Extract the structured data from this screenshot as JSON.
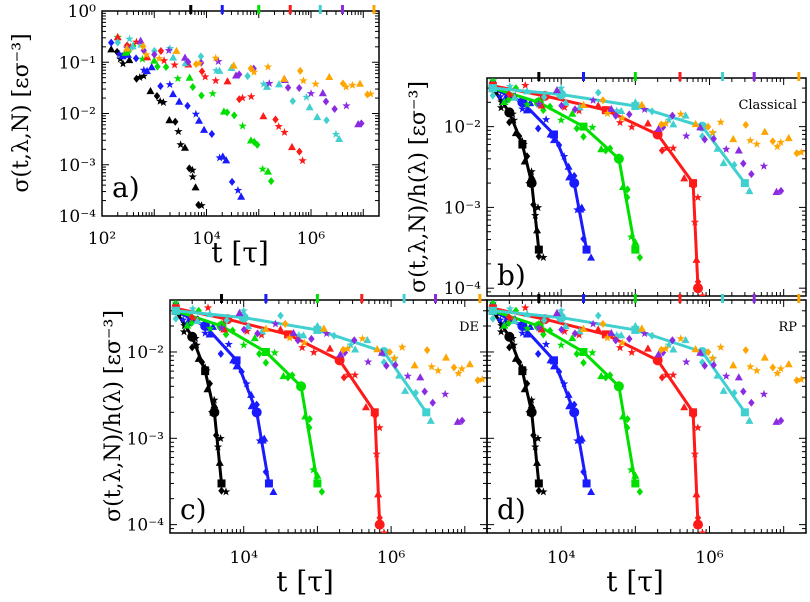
{
  "figure_type": "multi-panel log-log plot",
  "chart_data": [
    {
      "panel": "a)",
      "type": "scatter",
      "xscale": "log",
      "yscale": "log",
      "xlim": [
        100,
        20000000
      ],
      "ylim": [
        0.0001,
        1
      ],
      "xlabel": "t [τ]",
      "ylabel": "σ(t,λ,N) [εσ⁻³]",
      "xtick_labels": [
        "10²",
        "10⁴",
        "10⁶"
      ],
      "ytick_labels": [
        "10⁻⁴",
        "10⁻³",
        "10⁻²",
        "10⁻¹",
        "10⁰"
      ],
      "top_marker_positions": [
        5000,
        20000,
        100000,
        400000,
        1500000,
        4000000,
        16000000
      ],
      "series": [
        {
          "name": "black",
          "color": "#000000",
          "x": [
            150,
            300,
            700,
            1500,
            3000,
            5000,
            7000
          ],
          "y": [
            0.18,
            0.1,
            0.04,
            0.015,
            0.004,
            0.0008,
            0.0002
          ]
        },
        {
          "name": "blue",
          "color": "#1a1aff",
          "x": [
            150,
            400,
            1000,
            3000,
            8000,
            20000,
            40000
          ],
          "y": [
            0.2,
            0.12,
            0.06,
            0.02,
            0.007,
            0.0015,
            0.0003
          ]
        },
        {
          "name": "green",
          "color": "#00e000",
          "x": [
            200,
            500,
            2000,
            8000,
            30000,
            80000,
            150000
          ],
          "y": [
            0.25,
            0.15,
            0.07,
            0.03,
            0.01,
            0.003,
            0.0006
          ]
        },
        {
          "name": "red",
          "color": "#ff1a1a",
          "x": [
            200,
            600,
            3000,
            15000,
            60000,
            250000,
            600000
          ],
          "y": [
            0.3,
            0.18,
            0.1,
            0.05,
            0.02,
            0.006,
            0.0015
          ]
        },
        {
          "name": "cyan",
          "color": "#40d0d0",
          "x": [
            200,
            800,
            5000,
            30000,
            200000,
            1000000,
            3000000
          ],
          "y": [
            0.3,
            0.2,
            0.12,
            0.07,
            0.035,
            0.015,
            0.004
          ]
        },
        {
          "name": "purple",
          "color": "#8a2be2",
          "x": [
            300,
            1500,
            10000,
            80000,
            500000,
            2000000,
            8000000
          ],
          "y": [
            0.25,
            0.16,
            0.1,
            0.06,
            0.035,
            0.02,
            0.008
          ]
        },
        {
          "name": "orange",
          "color": "#ffa500",
          "x": [
            300,
            2000,
            20000,
            150000,
            1000000,
            5000000,
            12000000
          ],
          "y": [
            0.2,
            0.14,
            0.1,
            0.07,
            0.05,
            0.04,
            0.03
          ]
        }
      ]
    },
    {
      "panel": "b)",
      "type": "scatter+line",
      "label": "Classical",
      "xscale": "log",
      "yscale": "log",
      "xlim": [
        1000,
        20000000
      ],
      "ylim": [
        8e-05,
        0.04
      ],
      "ylabel": "σ(t,λ,N)/h(λ) [εσ⁻³]",
      "ytick_labels": [
        "10⁻⁴",
        "10⁻³",
        "10⁻²"
      ],
      "top_marker_positions": [
        5000,
        20000,
        100000,
        400000,
        1500000,
        4000000,
        16000000
      ],
      "series": [
        {
          "name": "black",
          "color": "#000000",
          "x": [
            1200,
            2000,
            3000,
            4000,
            5000
          ],
          "y": [
            0.03,
            0.015,
            0.006,
            0.002,
            0.0003
          ]
        },
        {
          "name": "blue",
          "color": "#1a1aff",
          "x": [
            1200,
            3000,
            8000,
            15000,
            22000
          ],
          "y": [
            0.03,
            0.02,
            0.008,
            0.002,
            0.0003
          ]
        },
        {
          "name": "green",
          "color": "#00e000",
          "x": [
            1200,
            5000,
            20000,
            60000,
            100000
          ],
          "y": [
            0.03,
            0.02,
            0.01,
            0.004,
            0.0003
          ]
        },
        {
          "name": "red",
          "color": "#ff1a1a",
          "x": [
            1200,
            6000,
            40000,
            200000,
            600000,
            700000
          ],
          "y": [
            0.032,
            0.024,
            0.016,
            0.008,
            0.002,
            0.0001
          ]
        },
        {
          "name": "cyan",
          "color": "#40d0d0",
          "x": [
            1200,
            10000,
            100000,
            800000,
            3000000
          ],
          "y": [
            0.03,
            0.025,
            0.018,
            0.01,
            0.002
          ]
        },
        {
          "name": "purple",
          "color": "#8a2be2",
          "x": [
            5000,
            100000,
            1000000,
            8000000
          ],
          "y": [
            0.025,
            0.015,
            0.008,
            0.002
          ]
        },
        {
          "name": "orange",
          "color": "#ffa500",
          "x": [
            20000,
            500000,
            4000000,
            15000000
          ],
          "y": [
            0.02,
            0.012,
            0.008,
            0.006
          ]
        }
      ]
    },
    {
      "panel": "c)",
      "type": "scatter+line",
      "label": "DE",
      "xscale": "log",
      "yscale": "log",
      "xlim": [
        1000,
        20000000
      ],
      "ylim": [
        8e-05,
        0.04
      ],
      "xlabel": "t [τ]",
      "ylabel": "σ(t,λ,N)/h(λ) [εσ⁻³]",
      "xtick_labels": [
        "10⁴",
        "10⁶"
      ],
      "ytick_labels": [
        "10⁻⁴",
        "10⁻³",
        "10⁻²"
      ],
      "top_marker_positions": [
        5000,
        20000,
        100000,
        400000,
        1500000,
        4000000,
        16000000
      ],
      "series": [
        {
          "name": "black",
          "color": "#000000",
          "x": [
            1200,
            2000,
            3000,
            4000,
            5000
          ],
          "y": [
            0.03,
            0.015,
            0.006,
            0.002,
            0.0003
          ]
        },
        {
          "name": "blue",
          "color": "#1a1aff",
          "x": [
            1200,
            3000,
            8000,
            15000,
            22000
          ],
          "y": [
            0.03,
            0.02,
            0.008,
            0.002,
            0.0003
          ]
        },
        {
          "name": "green",
          "color": "#00e000",
          "x": [
            1200,
            5000,
            20000,
            60000,
            100000
          ],
          "y": [
            0.03,
            0.02,
            0.01,
            0.004,
            0.0003
          ]
        },
        {
          "name": "red",
          "color": "#ff1a1a",
          "x": [
            1200,
            6000,
            40000,
            200000,
            600000,
            700000
          ],
          "y": [
            0.032,
            0.024,
            0.016,
            0.008,
            0.002,
            0.0001
          ]
        },
        {
          "name": "cyan",
          "color": "#40d0d0",
          "x": [
            1200,
            10000,
            100000,
            800000,
            3000000
          ],
          "y": [
            0.03,
            0.025,
            0.018,
            0.01,
            0.002
          ]
        },
        {
          "name": "purple",
          "color": "#8a2be2",
          "x": [
            5000,
            100000,
            1000000,
            8000000
          ],
          "y": [
            0.025,
            0.015,
            0.008,
            0.002
          ]
        },
        {
          "name": "orange",
          "color": "#ffa500",
          "x": [
            20000,
            500000,
            4000000,
            15000000
          ],
          "y": [
            0.02,
            0.012,
            0.008,
            0.006
          ]
        }
      ]
    },
    {
      "panel": "d)",
      "type": "scatter+line",
      "label": "RP",
      "xscale": "log",
      "yscale": "log",
      "xlim": [
        1000,
        20000000
      ],
      "ylim": [
        8e-05,
        0.04
      ],
      "xlabel": "t [τ]",
      "xtick_labels": [
        "10⁴",
        "10⁶"
      ],
      "top_marker_positions": [
        5000,
        20000,
        100000,
        400000,
        1500000,
        4000000,
        16000000
      ],
      "series": [
        {
          "name": "black",
          "color": "#000000",
          "x": [
            1200,
            2000,
            3000,
            4000,
            5000
          ],
          "y": [
            0.03,
            0.015,
            0.006,
            0.002,
            0.0003
          ]
        },
        {
          "name": "blue",
          "color": "#1a1aff",
          "x": [
            1200,
            3000,
            8000,
            15000,
            22000
          ],
          "y": [
            0.03,
            0.02,
            0.008,
            0.002,
            0.0003
          ]
        },
        {
          "name": "green",
          "color": "#00e000",
          "x": [
            1200,
            5000,
            20000,
            60000,
            100000
          ],
          "y": [
            0.03,
            0.02,
            0.01,
            0.004,
            0.0003
          ]
        },
        {
          "name": "red",
          "color": "#ff1a1a",
          "x": [
            1200,
            6000,
            40000,
            200000,
            600000,
            700000
          ],
          "y": [
            0.032,
            0.024,
            0.016,
            0.008,
            0.002,
            0.0001
          ]
        },
        {
          "name": "cyan",
          "color": "#40d0d0",
          "x": [
            1200,
            10000,
            100000,
            800000,
            3000000
          ],
          "y": [
            0.03,
            0.025,
            0.018,
            0.01,
            0.002
          ]
        },
        {
          "name": "purple",
          "color": "#8a2be2",
          "x": [
            5000,
            100000,
            1000000,
            8000000
          ],
          "y": [
            0.025,
            0.015,
            0.008,
            0.002
          ]
        },
        {
          "name": "orange",
          "color": "#ffa500",
          "x": [
            20000,
            500000,
            4000000,
            15000000
          ],
          "y": [
            0.02,
            0.012,
            0.008,
            0.006
          ]
        }
      ]
    }
  ]
}
